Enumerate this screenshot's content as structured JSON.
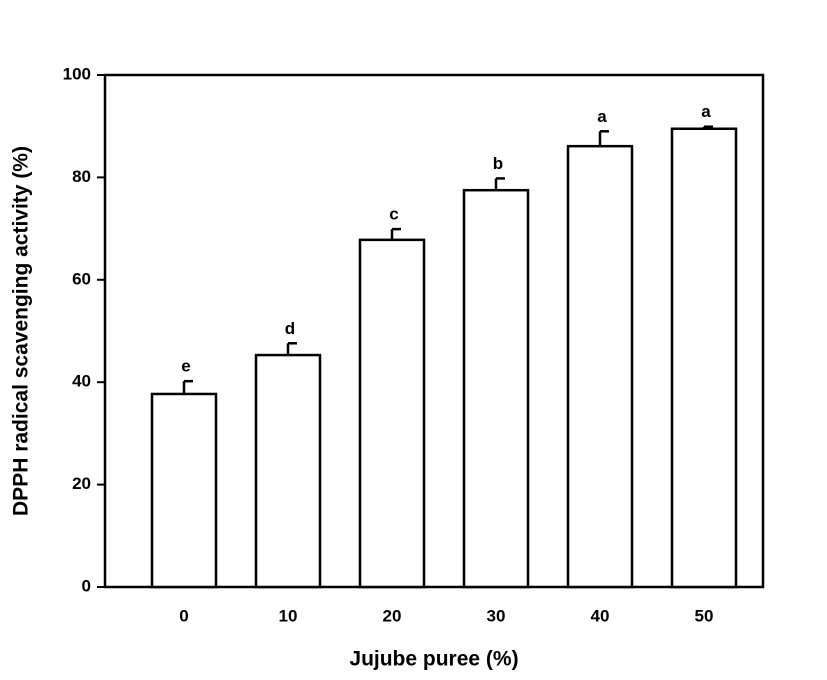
{
  "chart_data": {
    "type": "bar",
    "x_label": "Jujube puree (%)",
    "y_label": "DPPH radical scavenging activity (%)",
    "categories": [
      "0",
      "10",
      "20",
      "30",
      "40",
      "50"
    ],
    "values": [
      37.7,
      45.3,
      67.8,
      77.5,
      86.1,
      89.5
    ],
    "errors": [
      2.5,
      2.3,
      2.1,
      2.3,
      2.9,
      0.4
    ],
    "annotations": [
      "e",
      "d",
      "c",
      "b",
      "a",
      "a"
    ],
    "color": "#ffffff",
    "ylim": [
      0,
      100
    ],
    "yticks": [
      0,
      20,
      40,
      60,
      80,
      100
    ]
  }
}
